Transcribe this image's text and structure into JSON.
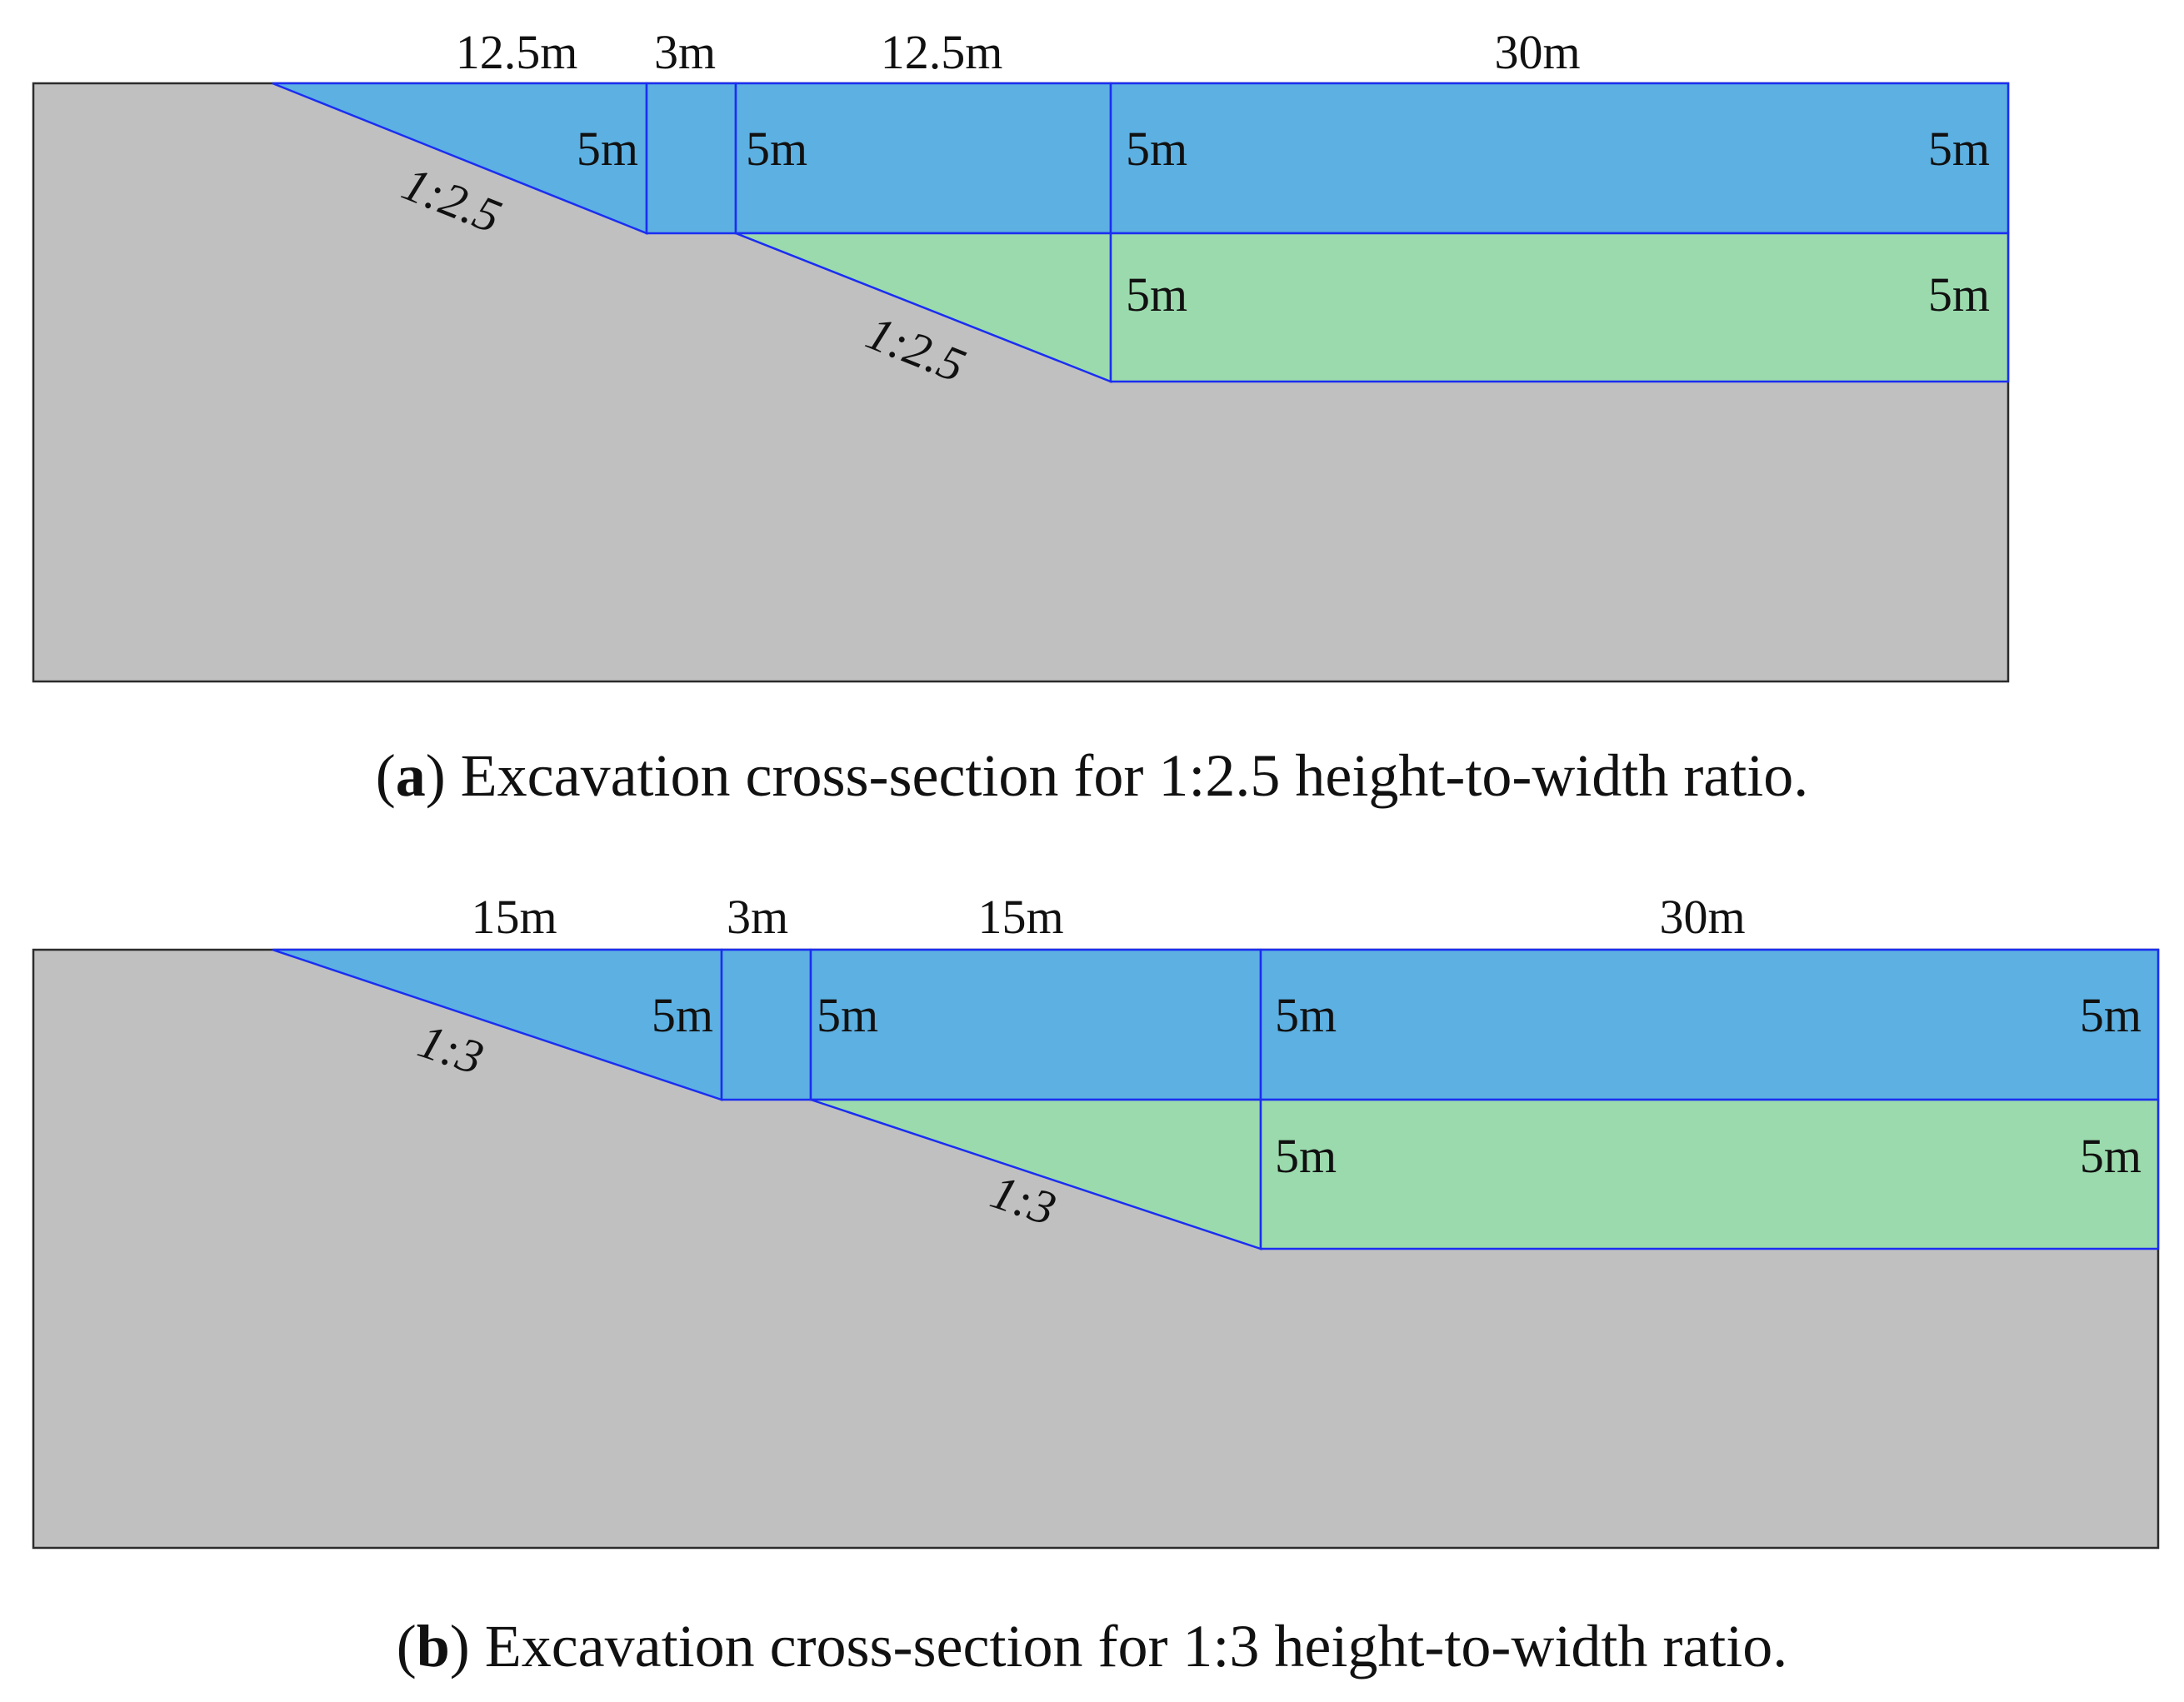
{
  "figure_a": {
    "top_labels": [
      "12.5m",
      "3m",
      "12.5m",
      "30m"
    ],
    "depth_labels": {
      "upper_slope": "5m",
      "berm_right": "5m",
      "block_left_top": "5m",
      "block_right_top": "5m",
      "block_left_bottom": "5m",
      "block_right_bottom": "5m"
    },
    "slope_upper": "1:2.5",
    "slope_lower": "1:2.5",
    "caption": {
      "open": "(",
      "letter": "a",
      "text": ") Excavation cross-section for 1:2.5 height-to-width ratio."
    }
  },
  "figure_b": {
    "top_labels": [
      "15m",
      "3m",
      "15m",
      "30m"
    ],
    "depth_labels": {
      "upper_slope": "5m",
      "berm_right": "5m",
      "block_left_top": "5m",
      "block_right_top": "5m",
      "block_left_bottom": "5m",
      "block_right_bottom": "5m"
    },
    "slope_upper": "1:3",
    "slope_lower": "1:3",
    "caption": {
      "open": "(",
      "letter": "b",
      "text": ") Excavation cross-section for 1:3 height-to-width ratio."
    }
  },
  "colors": {
    "soil": "#c0c0c0",
    "upper_excavation": "#5cb0e2",
    "lower_excavation": "#9bdaad",
    "outline": "#1b2ef0"
  }
}
